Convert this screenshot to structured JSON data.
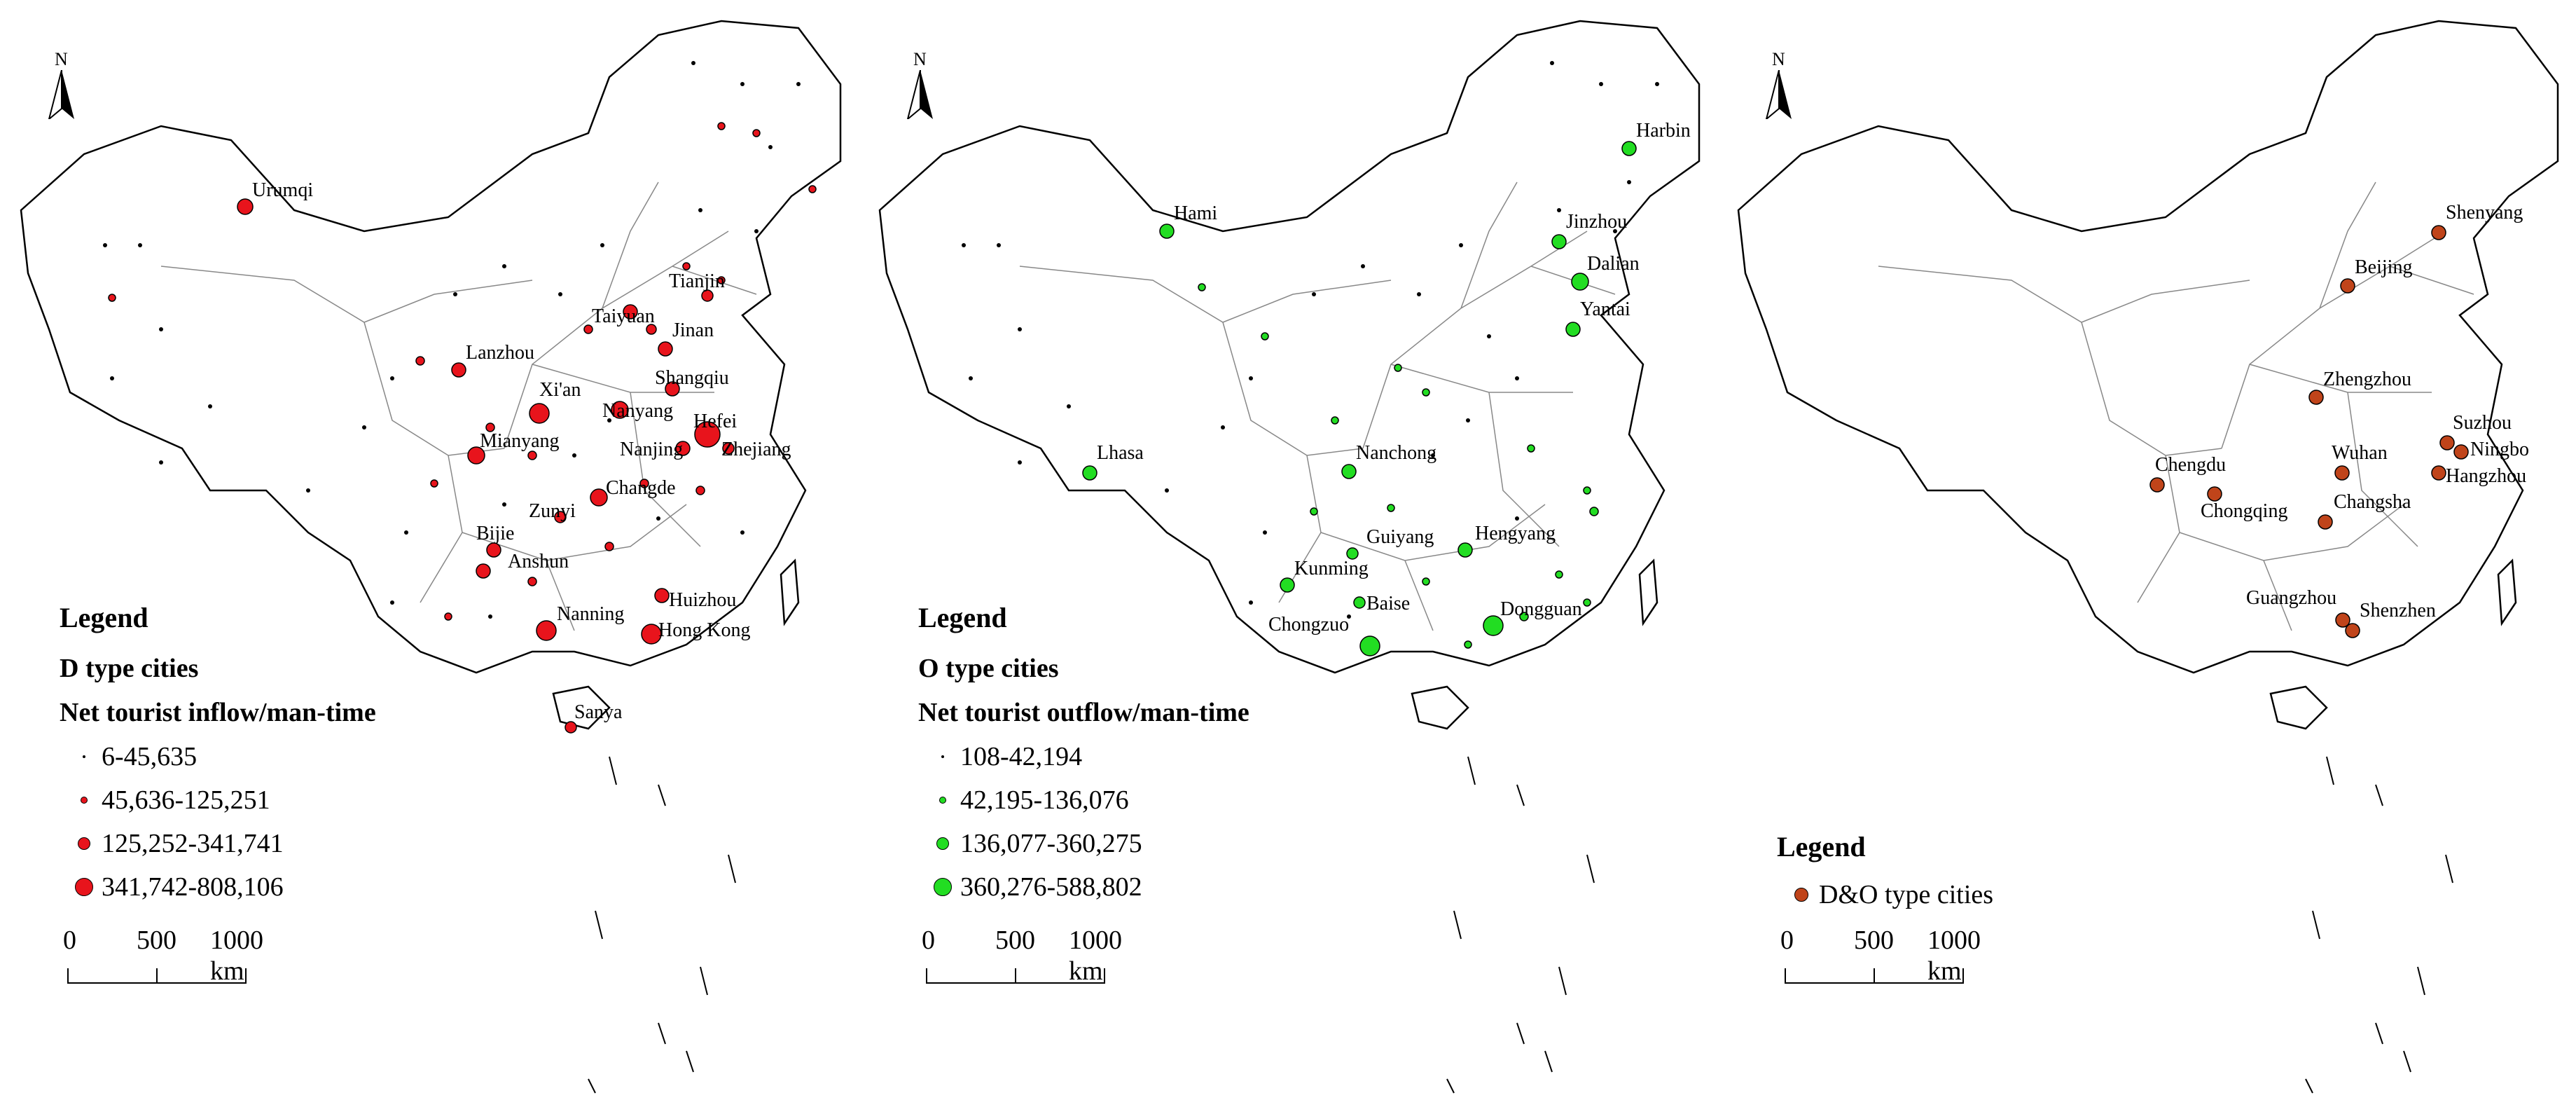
{
  "panels": [
    {
      "legend_title": "Legend",
      "type_label": "D type cities",
      "measure_label": "Net tourist inflow/man-time",
      "classes": [
        "6-45,635",
        "45,636-125,251",
        "125,252-341,741",
        "341,742-808,106"
      ],
      "color": "#e8141c",
      "cities": [
        "Urumqi",
        "Lanzhou",
        "Taiyuan",
        "Tianjin",
        "Jinan",
        "Shangqiu",
        "Xi'an",
        "Nanyang",
        "Hefei",
        "Zhejiang",
        "Mianyang",
        "Nanjing",
        "Changde",
        "Zunyi",
        "Bijie",
        "Anshun",
        "Huizhou",
        "Nanning",
        "Hong Kong",
        "Sanya"
      ]
    },
    {
      "legend_title": "Legend",
      "type_label": "O type cities",
      "measure_label": "Net tourist outflow/man-time",
      "classes": [
        "108-42,194",
        "42,195-136,076",
        "136,077-360,275",
        "360,276-588,802"
      ],
      "color": "#22dd22",
      "cities": [
        "Harbin",
        "Hami",
        "Jinzhou",
        "Dalian",
        "Yantai",
        "Lhasa",
        "Nanchong",
        "Guiyang",
        "Hengyang",
        "Kunming",
        "Baise",
        "Chongzuo",
        "Dongguan"
      ]
    },
    {
      "legend_title": "Legend",
      "type_label": "D&O type cities",
      "color": "#c0441a",
      "cities": [
        "Shenyang",
        "Beijing",
        "Zhengzhou",
        "Suzhou",
        "Ningbo",
        "Chengdu",
        "Chongqing",
        "Wuhan",
        "Hangzhou",
        "Changsha",
        "Guangzhou",
        "Shenzhen"
      ]
    }
  ],
  "north_label": "N",
  "scale": {
    "labels": [
      "0",
      "500",
      "1000 km"
    ]
  }
}
